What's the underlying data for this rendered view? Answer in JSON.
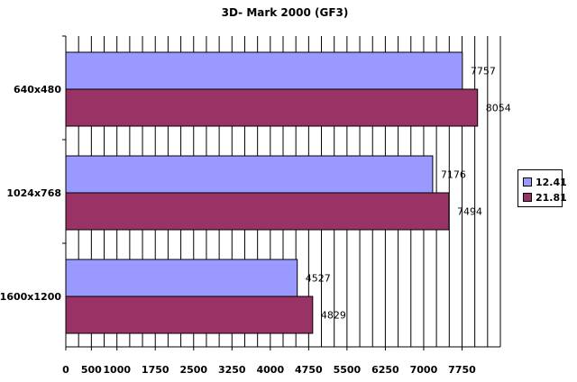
{
  "chart_data": {
    "type": "bar",
    "orientation": "horizontal",
    "title": "3D- Mark 2000 (GF3)",
    "categories": [
      "640x480",
      "1024x768",
      "1600x1200"
    ],
    "series": [
      {
        "name": "12.41",
        "values": [
          7757,
          7176,
          4527
        ],
        "color": "#9999ff"
      },
      {
        "name": "21.81",
        "values": [
          8054,
          7494,
          4829
        ],
        "color": "#993366"
      }
    ],
    "xticks": [
      "0",
      "500",
      "1000",
      "1750",
      "2500",
      "3250",
      "4000",
      "4750",
      "5500",
      "6250",
      "7000",
      "7750"
    ],
    "xlim": [
      0,
      8500
    ],
    "grid": true,
    "legend_position": "right"
  }
}
